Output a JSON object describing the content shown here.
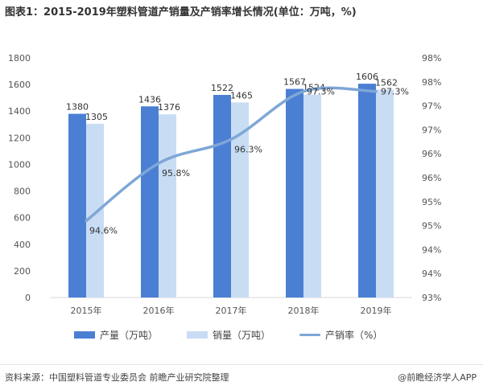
{
  "title": "图表1：2015-2019年塑料管道产销量及产销率增长情况(单位：万吨，%)",
  "source": "资料来源：中国塑料管道专业委员会 前瞻产业研究院整理",
  "brand": "@前瞻经济学人APP",
  "colors": {
    "production": "#4b7fd4",
    "sales": "#c8dcf4",
    "rate": "#7ea7d6",
    "axis": "#d9d9d9",
    "text": "#555555"
  },
  "chart_data": {
    "type": "bar",
    "categories": [
      "2015年",
      "2016年",
      "2017年",
      "2018年",
      "2019年"
    ],
    "series": [
      {
        "name": "产量（万吨）",
        "type": "bar",
        "axis": "left",
        "values": [
          1380,
          1436,
          1522,
          1567,
          1606
        ]
      },
      {
        "name": "销量（万吨）",
        "type": "bar",
        "axis": "left",
        "values": [
          1305,
          1376,
          1465,
          1524,
          1562
        ]
      },
      {
        "name": "产销率（%）",
        "type": "line",
        "axis": "right",
        "values": [
          94.6,
          95.8,
          96.3,
          97.3,
          97.3
        ],
        "labels": [
          "94.6%",
          "95.8%",
          "96.3%",
          "97.3%",
          "97.3%"
        ]
      }
    ],
    "left_axis": {
      "min": 0,
      "max": 1800,
      "step": 200,
      "ticks": [
        "0",
        "200",
        "400",
        "600",
        "800",
        "1000",
        "1200",
        "1400",
        "1600",
        "1800"
      ]
    },
    "right_axis": {
      "min": 93,
      "max": 98,
      "step": 0.5,
      "ticks": [
        "93%",
        "94%",
        "94%",
        "95%",
        "95%",
        "96%",
        "96%",
        "97%",
        "97%",
        "98%",
        "98%"
      ]
    },
    "legend_position": "bottom",
    "grid": false
  }
}
